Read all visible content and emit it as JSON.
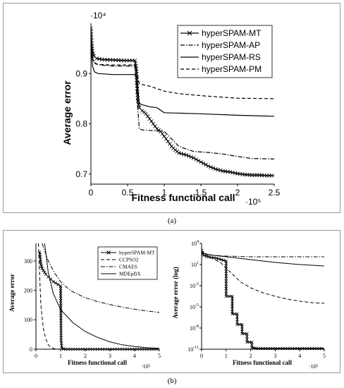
{
  "panel_labels": {
    "a": "(a)",
    "b": "(b)"
  },
  "chart_data": [
    {
      "type": "line",
      "panel": "a",
      "xlabel": "Fitness functional call",
      "ylabel": "Average error",
      "x_multiplier": "·10⁵",
      "y_multiplier": "·10⁴",
      "xlim": [
        0,
        2.5
      ],
      "ylim": [
        0.68,
        1.0
      ],
      "xticks": [
        0,
        0.5,
        1,
        1.5,
        2,
        2.5
      ],
      "xtick_labels": [
        "0",
        "0.5",
        "1",
        "1.5",
        "2",
        "2.5"
      ],
      "yticks": [
        0.7,
        0.8,
        0.9
      ],
      "ytick_labels": [
        "0.7",
        "0.8",
        "0.9"
      ],
      "grid": false,
      "legend_position": "top-right",
      "series": [
        {
          "name": "hyperSPAM-MT",
          "style": "marker-x",
          "x": [
            0,
            0.01,
            0.02,
            0.04,
            0.08,
            0.15,
            0.3,
            0.45,
            0.6,
            0.62,
            0.63,
            0.64,
            0.66,
            0.7,
            0.75,
            0.8,
            0.85,
            0.9,
            0.95,
            1.0,
            1.05,
            1.1,
            1.15,
            1.2,
            1.3,
            1.4,
            1.5,
            1.6,
            1.7,
            1.8,
            1.9,
            2.0,
            2.1,
            2.2,
            2.3,
            2.4,
            2.5
          ],
          "y": [
            0.99,
            0.96,
            0.945,
            0.935,
            0.93,
            0.928,
            0.927,
            0.926,
            0.926,
            0.91,
            0.87,
            0.845,
            0.832,
            0.826,
            0.82,
            0.81,
            0.8,
            0.79,
            0.785,
            0.775,
            0.765,
            0.755,
            0.748,
            0.742,
            0.738,
            0.732,
            0.724,
            0.716,
            0.71,
            0.706,
            0.704,
            0.701,
            0.699,
            0.698,
            0.698,
            0.697,
            0.697
          ]
        },
        {
          "name": "hyperSPAM-AP",
          "style": "dashdot",
          "x": [
            0,
            0.02,
            0.05,
            0.1,
            0.3,
            0.6,
            0.63,
            0.66,
            0.7,
            0.8,
            0.9,
            1.0,
            1.1,
            1.2,
            1.4,
            1.6,
            1.8,
            2.0,
            2.2,
            2.5
          ],
          "y": [
            0.97,
            0.935,
            0.922,
            0.917,
            0.915,
            0.915,
            0.85,
            0.79,
            0.788,
            0.787,
            0.786,
            0.785,
            0.77,
            0.755,
            0.745,
            0.743,
            0.74,
            0.735,
            0.731,
            0.73
          ]
        },
        {
          "name": "hyperSPAM-RS",
          "style": "solid",
          "x": [
            0,
            0.02,
            0.05,
            0.1,
            0.3,
            0.6,
            0.63,
            0.66,
            0.7,
            0.8,
            0.9,
            1.0,
            1.5,
            2.0,
            2.5
          ],
          "y": [
            0.96,
            0.915,
            0.903,
            0.9,
            0.898,
            0.898,
            0.89,
            0.84,
            0.838,
            0.834,
            0.832,
            0.822,
            0.82,
            0.817,
            0.815
          ]
        },
        {
          "name": "hyperSPAM-PM",
          "style": "dashed",
          "x": [
            0,
            0.02,
            0.05,
            0.1,
            0.3,
            0.6,
            0.63,
            0.66,
            0.7,
            0.8,
            0.9,
            1.0,
            1.2,
            1.5,
            2.0,
            2.5
          ],
          "y": [
            0.975,
            0.93,
            0.92,
            0.918,
            0.917,
            0.917,
            0.9,
            0.88,
            0.878,
            0.875,
            0.87,
            0.865,
            0.86,
            0.856,
            0.851,
            0.85
          ]
        }
      ]
    },
    {
      "type": "line",
      "panel": "b-left",
      "xlabel": "Fitness functional call",
      "ylabel": "Average error",
      "x_multiplier": "·10⁵",
      "xlim": [
        0,
        5
      ],
      "ylim": [
        0,
        360
      ],
      "xticks": [
        0,
        1,
        2,
        3,
        4,
        5
      ],
      "xtick_labels": [
        "0",
        "1",
        "2",
        "3",
        "4",
        "5"
      ],
      "yticks": [
        0,
        100,
        200,
        300
      ],
      "ytick_labels": [
        "0",
        "100",
        "200",
        "300"
      ],
      "legend_position": "top-right",
      "series": [
        {
          "name": "hyperSPAM-MT",
          "style": "marker-x",
          "x": [
            0.15,
            0.2,
            0.25,
            0.3,
            0.4,
            0.5,
            0.6,
            0.7,
            0.8,
            0.9,
            1.0,
            1.02,
            1.05,
            1.2,
            1.5,
            2,
            3,
            4,
            5
          ],
          "y": [
            330,
            290,
            275,
            268,
            255,
            246,
            238,
            230,
            225,
            220,
            215,
            30,
            2,
            0,
            0,
            0,
            0,
            0,
            0
          ]
        },
        {
          "name": "CCPSO2",
          "style": "dashed",
          "x": [
            0.1,
            0.15,
            0.2,
            0.3,
            0.4,
            0.5,
            0.6,
            0.7,
            0.8,
            1.0,
            1.5,
            2,
            5
          ],
          "y": [
            360,
            250,
            150,
            70,
            35,
            15,
            7,
            3,
            1,
            0,
            0,
            0,
            0
          ]
        },
        {
          "name": "CMAES",
          "style": "dashdot",
          "x": [
            0.25,
            0.5,
            0.75,
            1.0,
            1.25,
            1.5,
            2.0,
            2.5,
            3.0,
            3.5,
            4.0,
            4.5,
            5.0
          ],
          "y": [
            360,
            300,
            260,
            230,
            210,
            195,
            175,
            162,
            152,
            143,
            136,
            130,
            125
          ]
        },
        {
          "name": "MDEpBX",
          "style": "solid",
          "x": [
            0.35,
            0.5,
            0.7,
            1.0,
            1.5,
            2.0,
            2.5,
            3.0,
            3.5,
            4.0,
            4.5,
            5.0
          ],
          "y": [
            360,
            260,
            190,
            135,
            90,
            60,
            40,
            25,
            15,
            9,
            5,
            3
          ]
        }
      ]
    },
    {
      "type": "line",
      "panel": "b-right",
      "xlabel": "Fitness functional call",
      "ylabel": "Average error (log)",
      "x_multiplier": "·10⁵",
      "scale_y": "log",
      "xlim": [
        0,
        5
      ],
      "ylim_log10": [
        -11,
        4
      ],
      "xticks": [
        0,
        1,
        2,
        3,
        4,
        5
      ],
      "xtick_labels": [
        "0",
        "1",
        "2",
        "3",
        "4",
        "5"
      ],
      "yticks_log10": [
        -11,
        -8,
        -5,
        -2,
        1,
        4
      ],
      "series": [
        {
          "name": "hyperSPAM-MT",
          "style": "marker-x",
          "x": [
            0,
            0.05,
            0.1,
            0.2,
            0.4,
            0.6,
            0.8,
            1.0,
            1.0,
            1.25,
            1.25,
            1.45,
            1.45,
            1.65,
            1.65,
            1.85,
            1.85,
            2.05,
            2.05,
            2.3,
            3,
            4,
            5
          ],
          "log10y": [
            3.0,
            2.4,
            2.3,
            2.15,
            2.0,
            1.9,
            1.7,
            1.5,
            -3.5,
            -3.5,
            -6.0,
            -6.0,
            -7.5,
            -7.5,
            -8.8,
            -8.8,
            -10.0,
            -10.0,
            -10.8,
            -10.9,
            -10.9,
            -10.9,
            -10.9
          ]
        },
        {
          "name": "CCPSO2",
          "style": "dashed",
          "x": [
            0,
            0.1,
            0.3,
            0.5,
            0.8,
            1.0,
            1.3,
            1.6,
            2.0,
            2.5,
            3.0,
            3.5,
            4.0,
            4.5,
            5.0
          ],
          "log10y": [
            3.0,
            2.5,
            2.2,
            1.8,
            1.2,
            0.5,
            -0.5,
            -1.5,
            -2.3,
            -3.0,
            -3.5,
            -3.9,
            -4.2,
            -4.4,
            -4.5
          ]
        },
        {
          "name": "CMAES",
          "style": "dashdot",
          "x": [
            0,
            0.1,
            0.3,
            0.5,
            1.0,
            1.5,
            2.0,
            3.0,
            4.0,
            5.0
          ],
          "log10y": [
            3.0,
            2.6,
            2.4,
            2.3,
            2.2,
            2.15,
            2.1,
            2.1,
            2.1,
            2.1
          ]
        },
        {
          "name": "MDEpBX",
          "style": "solid",
          "x": [
            0,
            0.1,
            0.3,
            0.5,
            1.0,
            1.5,
            2.0,
            2.5,
            3.0,
            3.5,
            4.0,
            4.5,
            5.0
          ],
          "log10y": [
            3.0,
            2.6,
            2.4,
            2.3,
            2.1,
            1.9,
            1.7,
            1.5,
            1.3,
            1.15,
            1.0,
            0.9,
            0.8
          ]
        }
      ]
    }
  ]
}
